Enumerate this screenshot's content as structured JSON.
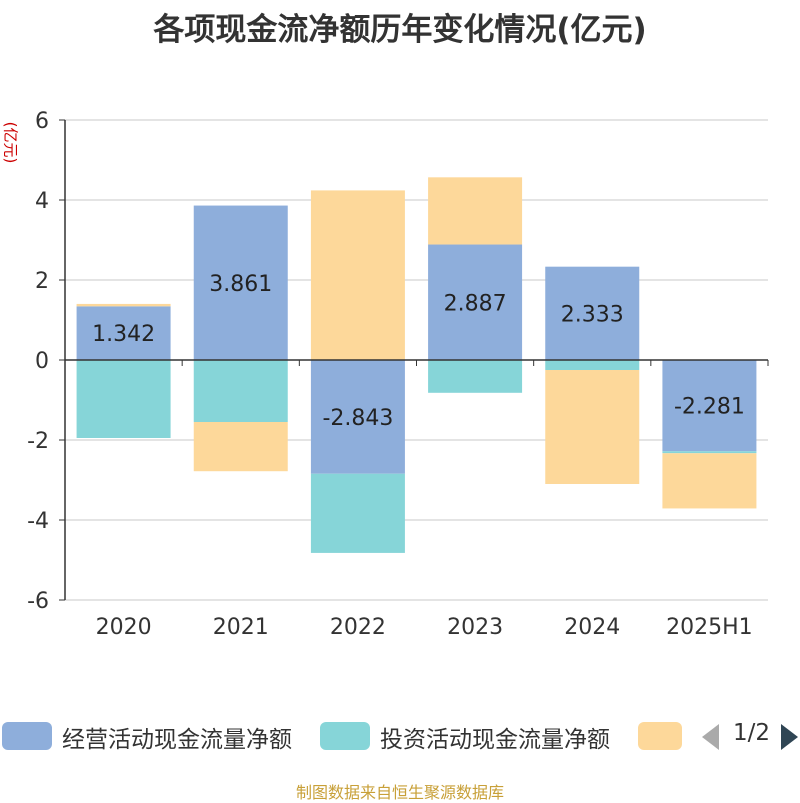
{
  "title": "各项现金流净额历年变化情况(亿元)",
  "source": "制图数据来自恒生聚源数据库",
  "legend": {
    "items": [
      {
        "label": "经营活动现金流量净额",
        "color": "#8eaedb"
      },
      {
        "label": "投资活动现金流量净额",
        "color": "#86d5d8"
      },
      {
        "label": "",
        "color": "#fdd89a"
      }
    ],
    "page": "1/2"
  },
  "chart_data": {
    "type": "bar",
    "stacked": true,
    "title": "各项现金流净额历年变化情况(亿元)",
    "ylabel": "(亿元)",
    "categories": [
      "2020",
      "2021",
      "2022",
      "2023",
      "2024",
      "2025H1"
    ],
    "ylim": [
      -6,
      6
    ],
    "yticks": [
      6,
      4,
      2,
      0,
      -2,
      -4,
      -6
    ],
    "grid": true,
    "series": [
      {
        "name": "经营活动现金流量净额",
        "color": "#8eaedb",
        "values": [
          1.342,
          3.861,
          -2.843,
          2.887,
          2.333,
          -2.281
        ],
        "labels": [
          "1.342",
          "3.861",
          "-2.843",
          "2.887",
          "2.333",
          "-2.281"
        ]
      },
      {
        "name": "投资活动现金流量净额",
        "color": "#86d5d8",
        "values": [
          -1.95,
          -1.55,
          -1.98,
          -0.82,
          -0.25,
          -0.05
        ]
      },
      {
        "color": "#fdd89a",
        "values": [
          0.06,
          -1.23,
          4.24,
          1.68,
          -2.85,
          -1.38
        ]
      }
    ]
  }
}
